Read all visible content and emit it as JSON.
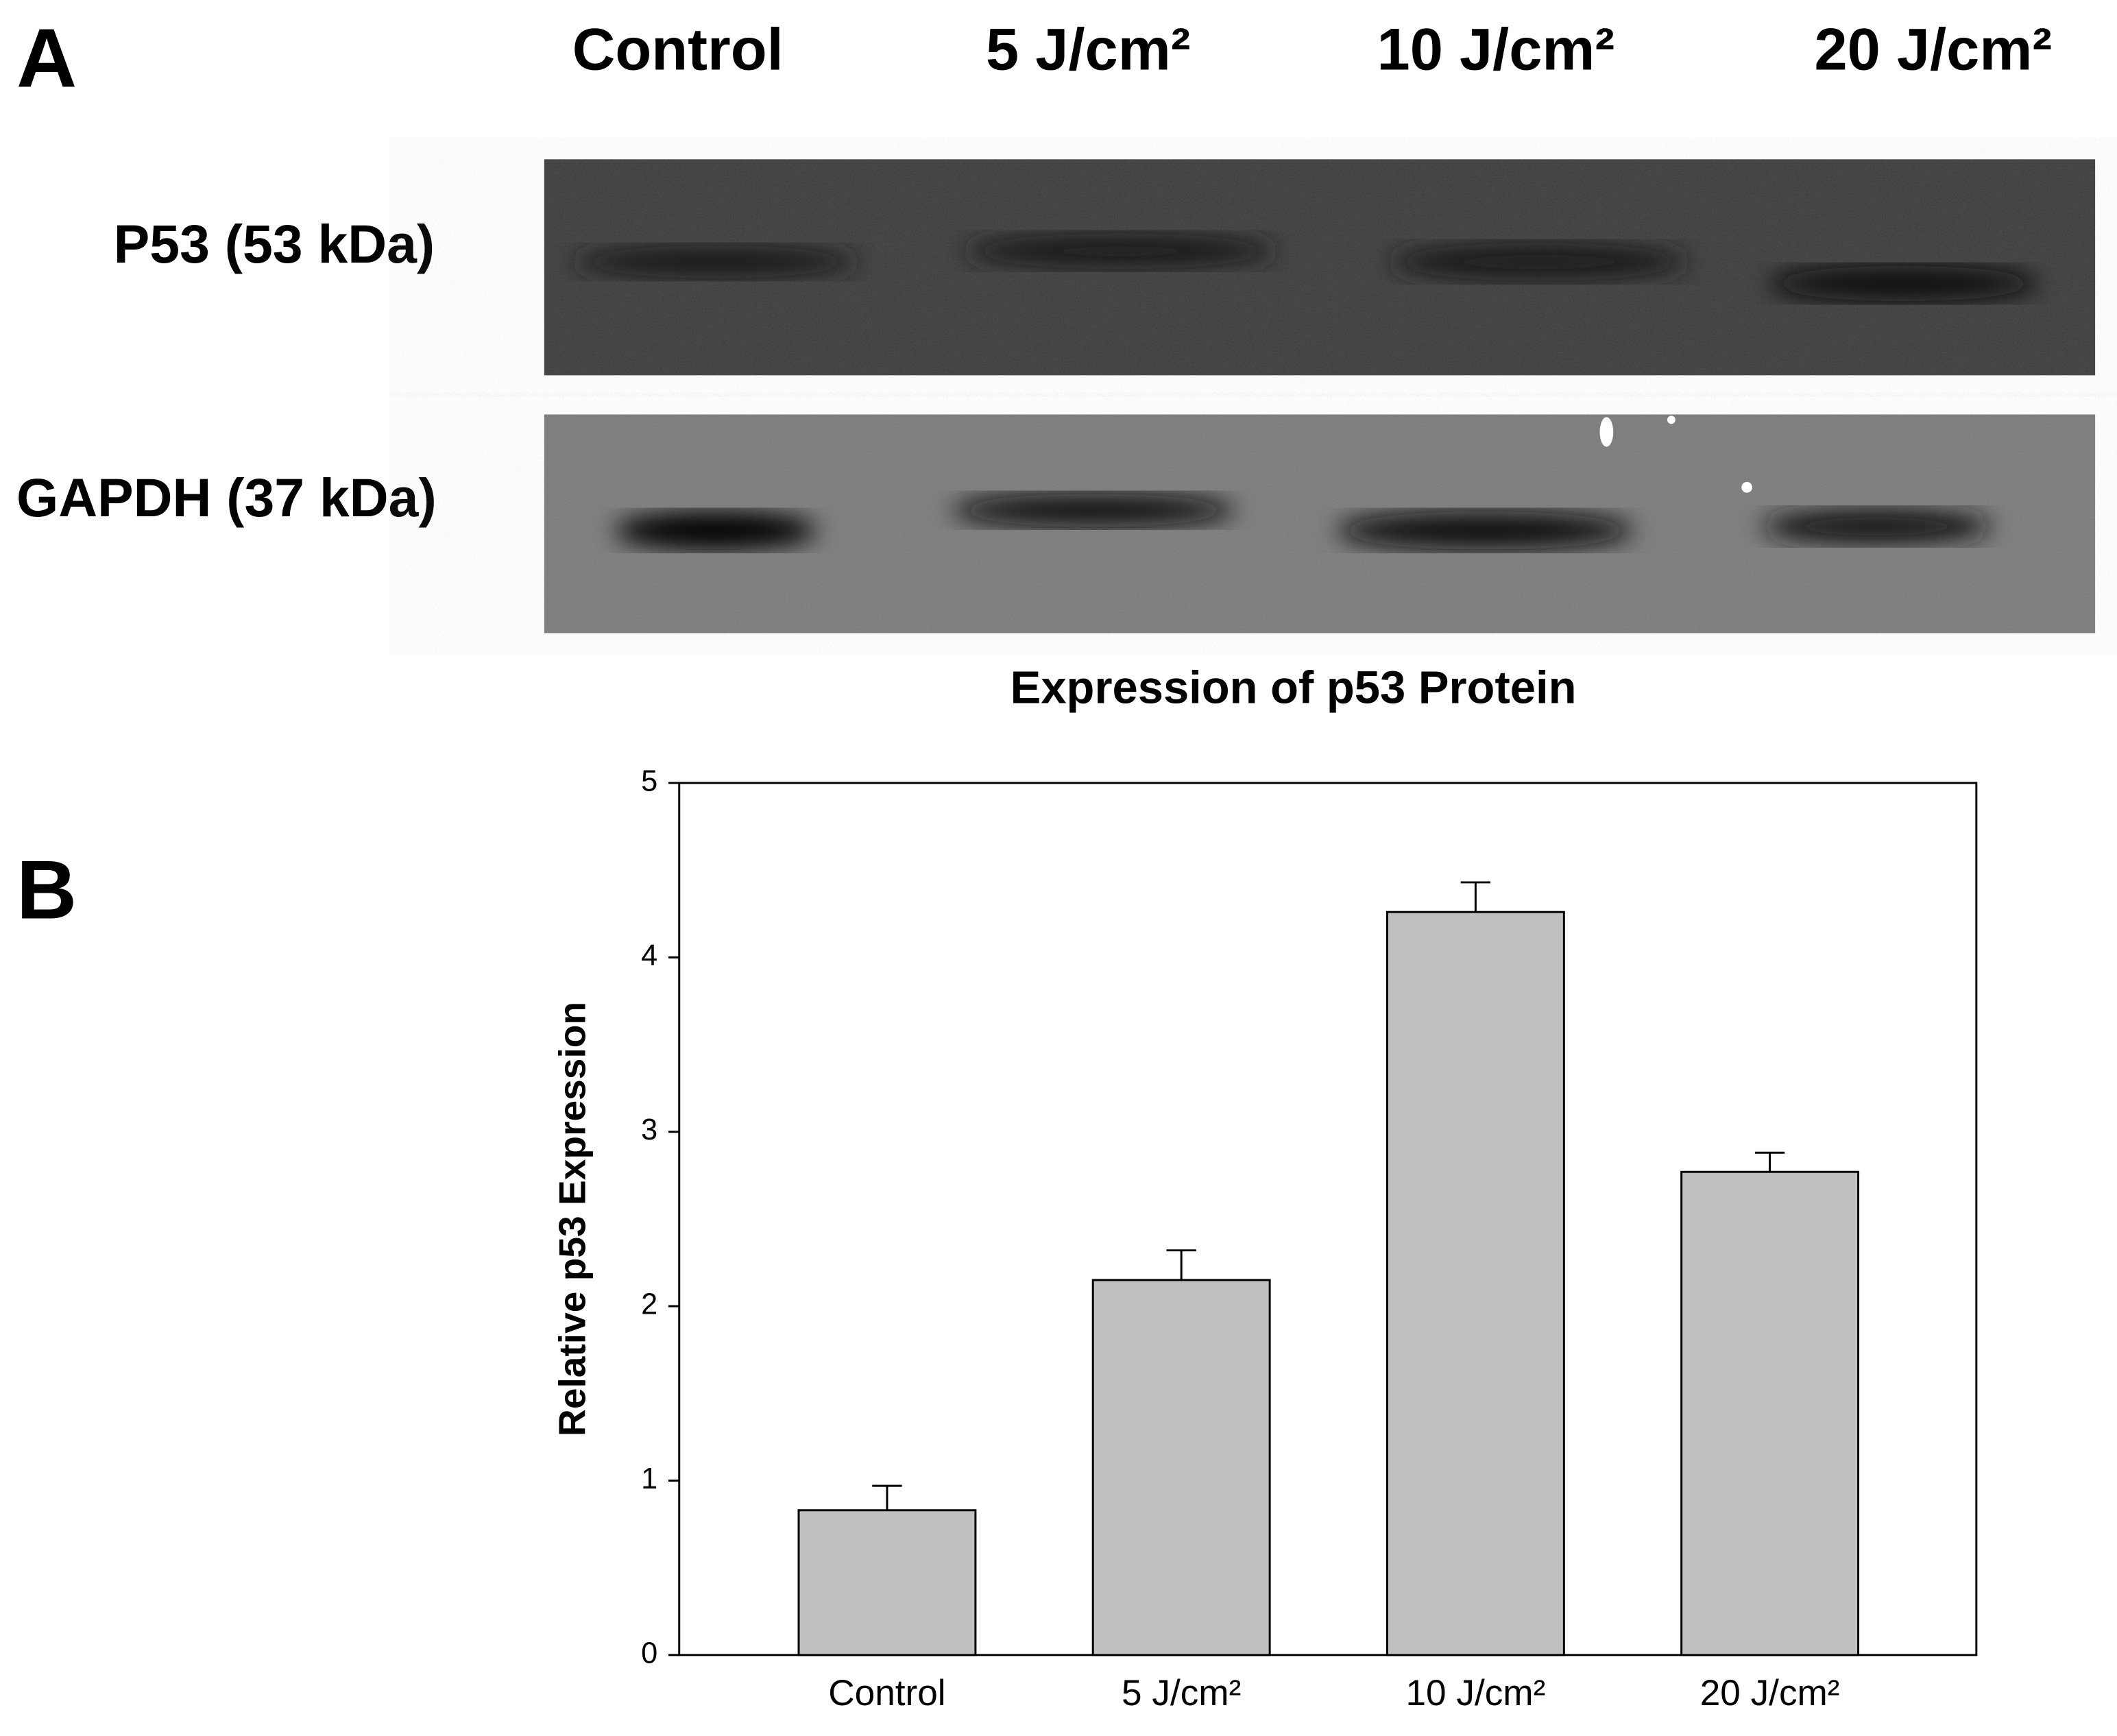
{
  "panel_a": {
    "label": "A",
    "lanes": [
      "Control",
      "5 J/cm²",
      "10 J/cm²",
      "20 J/cm²"
    ],
    "rows": [
      "P53 (53 kDa)",
      "GAPDH (37 kDa)"
    ]
  },
  "chart_data": {
    "type": "bar",
    "panel_label": "B",
    "title": "Expression of p53 Protein",
    "y_label": "Relative p53 Expression",
    "categories": [
      "Control",
      "5 J/cm²",
      "10 J/cm²",
      "20 J/cm²"
    ],
    "values": [
      0.83,
      2.15,
      4.26,
      2.77
    ],
    "errors": [
      0.14,
      0.17,
      0.17,
      0.11
    ],
    "color": "#c0c0c0",
    "ylim": [
      0,
      5
    ],
    "yticks": [
      0,
      1,
      2,
      3,
      4,
      5
    ]
  }
}
